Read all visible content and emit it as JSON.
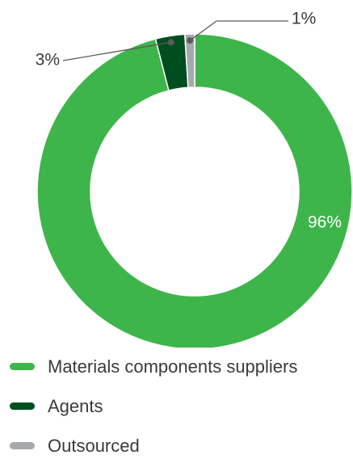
{
  "chart_data": {
    "type": "pie",
    "style": "donut",
    "slices": [
      {
        "label": "Materials components suppliers",
        "value": 96,
        "value_label": "96%",
        "color": "#3db54a"
      },
      {
        "label": "Agents",
        "value": 3,
        "value_label": "3%",
        "color": "#004d1f"
      },
      {
        "label": "Outsourced",
        "value": 1,
        "value_label": "1%",
        "color": "#a8a9ad"
      }
    ],
    "legend_position": "bottom"
  }
}
